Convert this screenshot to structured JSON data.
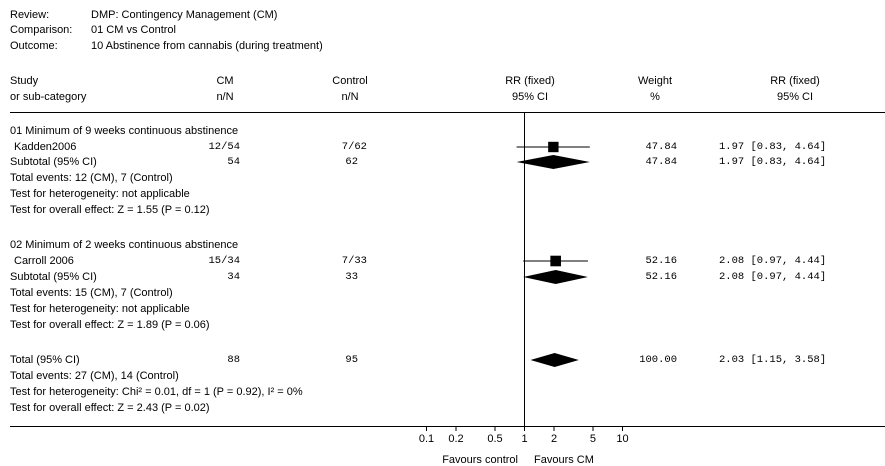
{
  "header": {
    "review_label": "Review:",
    "review_value": "DMP: Contingency Management (CM)",
    "comparison_label": "Comparison:",
    "comparison_value": "01 CM vs Control",
    "outcome_label": "Outcome:",
    "outcome_value": "10 Abstinence from cannabis (during treatment)"
  },
  "columns": {
    "study_1": "Study",
    "study_2": "or sub-category",
    "cm_1": "CM",
    "cm_2": "n/N",
    "control_1": "Control",
    "control_2": "n/N",
    "rr_plot_1": "RR (fixed)",
    "rr_plot_2": "95% CI",
    "weight_1": "Weight",
    "weight_2": "%",
    "rr_1": "RR (fixed)",
    "rr_2": "95% CI"
  },
  "groups": [
    {
      "title": "01 Minimum of 9 weeks continuous abstinence",
      "study": {
        "name": "Kadden2006",
        "cm": "12/54",
        "control": "7/62",
        "weight": "47.84",
        "rr_text": "1.97 [0.83, 4.64]"
      },
      "subtotal": {
        "label": "Subtotal (95% CI)",
        "cm": "54",
        "control": "62",
        "weight": "47.84",
        "rr_text": "1.97 [0.83, 4.64]"
      },
      "events": "Total events: 12 (CM), 7 (Control)",
      "heterogeneity": "Test for heterogeneity: not applicable",
      "overall": "Test for overall effect: Z = 1.55 (P = 0.12)"
    },
    {
      "title": "02 Minimum of 2 weeks continuous abstinence",
      "study": {
        "name": "Carroll 2006",
        "cm": "15/34",
        "control": "7/33",
        "weight": "52.16",
        "rr_text": "2.08 [0.97, 4.44]"
      },
      "subtotal": {
        "label": "Subtotal (95% CI)",
        "cm": "34",
        "control": "33",
        "weight": "52.16",
        "rr_text": "2.08 [0.97, 4.44]"
      },
      "events": "Total events: 15 (CM), 7 (Control)",
      "heterogeneity": "Test for heterogeneity: not applicable",
      "overall": "Test for overall effect: Z = 1.89 (P = 0.06)"
    }
  ],
  "total": {
    "label": "Total (95% CI)",
    "cm": "88",
    "control": "95",
    "weight": "100.00",
    "rr_text": "2.03 [1.15, 3.58]",
    "events": "Total events: 27 (CM), 14 (Control)",
    "heterogeneity": "Test for heterogeneity: Chi² = 0.01, df = 1 (P = 0.92), I² = 0%",
    "overall": "Test for overall effect: Z = 2.43 (P = 0.02)"
  },
  "axis": {
    "favours_left": "Favours control",
    "favours_right": "Favours CM"
  },
  "chart_data": {
    "type": "forest",
    "scale": "log",
    "xlim": [
      0.1,
      10
    ],
    "ticks": [
      0.1,
      0.2,
      0.5,
      1,
      2,
      5,
      10
    ],
    "tick_labels": [
      "0.1",
      "0.2",
      "0.5",
      "1",
      "2",
      "5",
      "10"
    ],
    "reference_line": 1,
    "studies": [
      {
        "name": "Kadden2006",
        "rr": 1.97,
        "ci": [
          0.83,
          4.64
        ],
        "weight": 47.84
      },
      {
        "name": "Carroll 2006",
        "rr": 2.08,
        "ci": [
          0.97,
          4.44
        ],
        "weight": 52.16
      }
    ],
    "pooled": [
      {
        "name": "Subtotal (95% CI)",
        "group": "01 Minimum of 9 weeks continuous abstinence",
        "rr": 1.97,
        "ci": [
          0.83,
          4.64
        ]
      },
      {
        "name": "Subtotal (95% CI)",
        "group": "02 Minimum of 2 weeks continuous abstinence",
        "rr": 2.08,
        "ci": [
          0.97,
          4.44
        ]
      },
      {
        "name": "Total (95% CI)",
        "rr": 2.03,
        "ci": [
          1.15,
          3.58
        ]
      }
    ]
  }
}
